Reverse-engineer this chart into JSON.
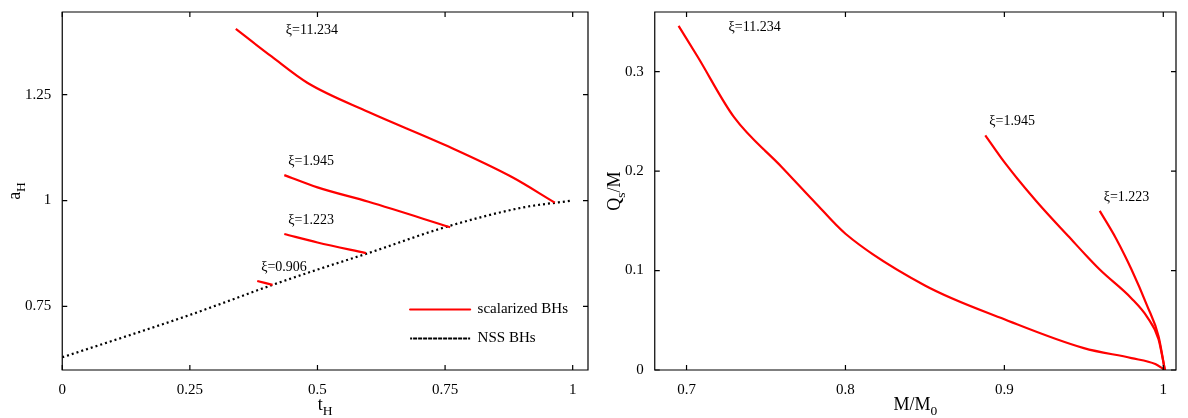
{
  "chart_data": [
    {
      "type": "line",
      "xlabel": "t$_{H}$",
      "ylabel": "a$_{H}$",
      "xlim": [
        0,
        1.03
      ],
      "ylim": [
        0.6,
        1.445
      ],
      "xticks": [
        0,
        0.25,
        0.5,
        0.75,
        1
      ],
      "yticks": [
        0.75,
        1,
        1.25
      ],
      "legend": "bottom right",
      "series": [
        {
          "name": "scalarized BHs",
          "color": "#ff0000",
          "line_style": "solid",
          "x": [
            0.34,
            0.41,
            0.48,
            0.6,
            0.75,
            0.88,
            0.965
          ],
          "values": [
            1.405,
            1.34,
            1.278,
            1.209,
            1.131,
            1.056,
            0.995
          ]
        },
        {
          "color": "#ff0000",
          "line_style": "solid",
          "x": [
            0.435,
            0.5,
            0.6,
            0.76
          ],
          "values": [
            1.06,
            1.031,
            0.997,
            0.937
          ]
        },
        {
          "color": "#ff0000",
          "line_style": "solid",
          "x": [
            0.435,
            0.5,
            0.595
          ],
          "values": [
            0.921,
            0.901,
            0.876
          ]
        },
        {
          "color": "#ff0000",
          "line_style": "solid",
          "x": [
            0.382,
            0.412
          ],
          "values": [
            0.81,
            0.801
          ]
        },
        {
          "name": "NSS BHs",
          "color": "#000000",
          "line_style": "dotted",
          "x": [
            0,
            0.25,
            0.41,
            0.5,
            0.6,
            0.75,
            0.9,
            1
          ],
          "values": [
            0.63,
            0.73,
            0.8,
            0.837,
            0.876,
            0.937,
            0.983,
            1
          ]
        }
      ],
      "annotations": [
        "ξ=11.234",
        "ξ=1.945",
        "ξ=1.223",
        "ξ=0.906"
      ]
    },
    {
      "type": "line",
      "xlabel": "M/M$_{0}$",
      "ylabel": "Q$_{s}$/M",
      "xlim": [
        0.68,
        1.008
      ],
      "ylim": [
        0,
        0.36
      ],
      "xticks": [
        0.7,
        0.8,
        0.9,
        1
      ],
      "yticks": [
        0,
        0.1,
        0.2,
        0.3
      ],
      "series": [
        {
          "color": "#ff0000",
          "x": [
            0.695,
            0.707,
            0.73,
            0.76,
            0.78,
            0.8,
            0.85,
            0.9,
            0.95,
            0.98,
            0.995,
            1.001
          ],
          "values": [
            0.346,
            0.315,
            0.254,
            0.204,
            0.17,
            0.137,
            0.085,
            0.051,
            0.022,
            0.012,
            0.006,
            0
          ]
        },
        {
          "color": "#ff0000",
          "x": [
            0.888,
            0.9,
            0.92,
            0.94,
            0.96,
            0.98,
            0.99,
            0.997,
            1.001
          ],
          "values": [
            0.236,
            0.209,
            0.17,
            0.135,
            0.101,
            0.072,
            0.053,
            0.031,
            0
          ]
        },
        {
          "color": "#ff0000",
          "x": [
            0.96,
            0.97,
            0.98,
            0.99,
            0.997,
            1.001
          ],
          "values": [
            0.16,
            0.133,
            0.101,
            0.064,
            0.034,
            0
          ]
        }
      ],
      "annotations": [
        "ξ=11.234",
        "ξ=1.945",
        "ξ=1.223"
      ]
    }
  ]
}
